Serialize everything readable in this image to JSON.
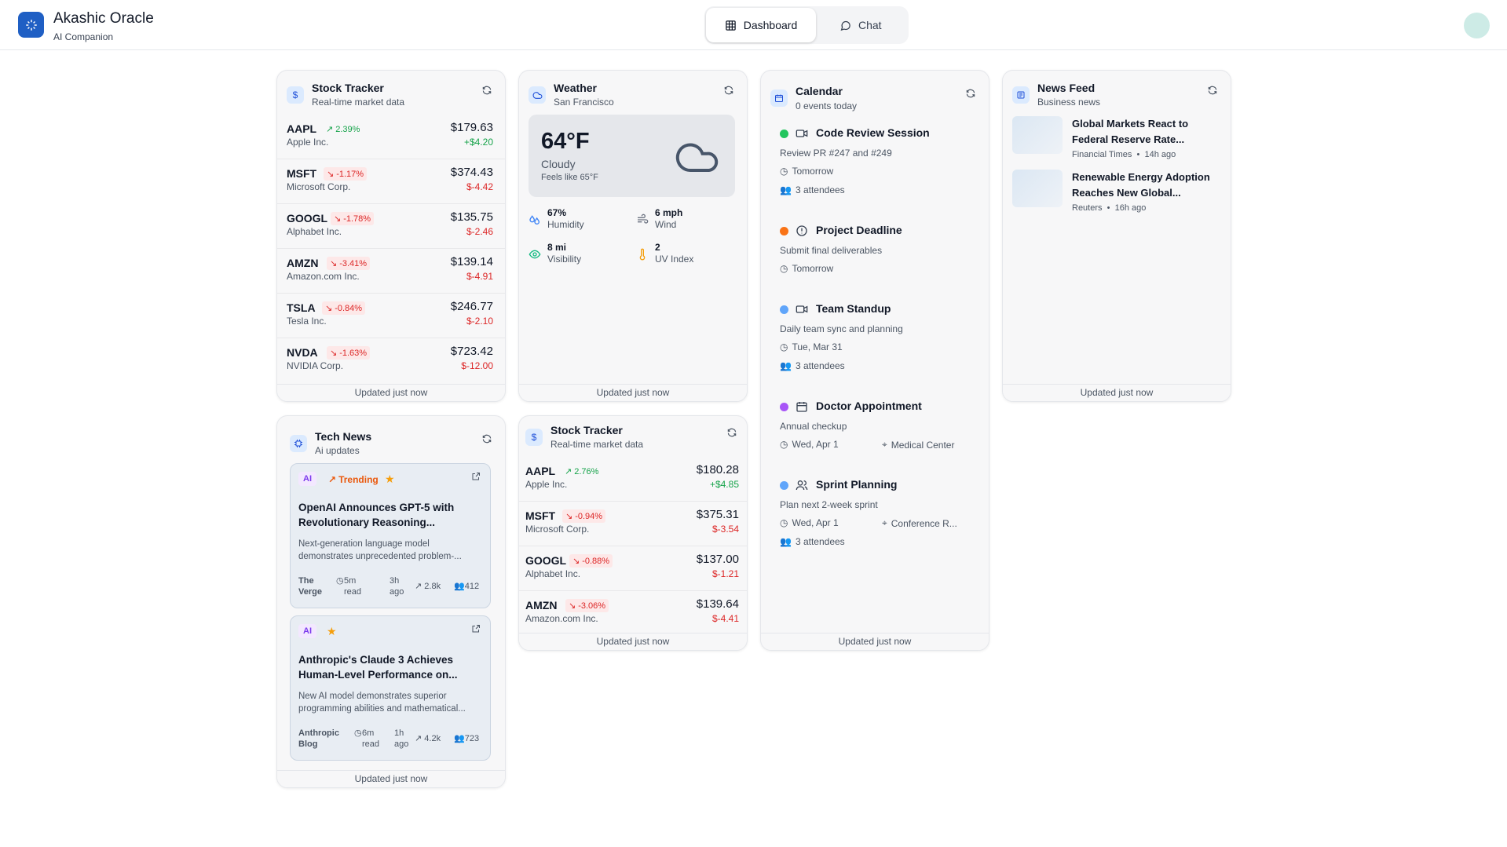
{
  "header": {
    "brand_title": "Akashic Oracle",
    "brand_subtitle": "AI Companion",
    "tabs": [
      {
        "label": "Dashboard",
        "icon": "grid-icon",
        "active": true
      },
      {
        "label": "Chat",
        "icon": "chat-bubble-icon",
        "active": false
      }
    ]
  },
  "stock_tracker_1": {
    "title": "Stock Tracker",
    "subtitle": "Real-time market data",
    "footer": "Updated just now",
    "stocks": [
      {
        "symbol": "AAPL",
        "name": "Apple Inc.",
        "change_pct": "2.39%",
        "price": "$179.63",
        "delta": "+$4.20",
        "direction": "up"
      },
      {
        "symbol": "MSFT",
        "name": "Microsoft Corp.",
        "change_pct": "-1.17%",
        "price": "$374.43",
        "delta": "$-4.42",
        "direction": "down"
      },
      {
        "symbol": "GOOGL",
        "name": "Alphabet Inc.",
        "change_pct": "-1.78%",
        "price": "$135.75",
        "delta": "$-2.46",
        "direction": "down"
      },
      {
        "symbol": "AMZN",
        "name": "Amazon.com Inc.",
        "change_pct": "-3.41%",
        "price": "$139.14",
        "delta": "$-4.91",
        "direction": "down"
      },
      {
        "symbol": "TSLA",
        "name": "Tesla Inc.",
        "change_pct": "-0.84%",
        "price": "$246.77",
        "delta": "$-2.10",
        "direction": "down"
      },
      {
        "symbol": "NVDA",
        "name": "NVIDIA Corp.",
        "change_pct": "-1.63%",
        "price": "$723.42",
        "delta": "$-12.00",
        "direction": "down"
      }
    ]
  },
  "weather": {
    "title": "Weather",
    "subtitle": "San Francisco",
    "temp": "64°F",
    "condition": "Cloudy",
    "feels_like": "Feels like 65°F",
    "humidity_value": "67%",
    "humidity_label": "Humidity",
    "wind_value": "6 mph",
    "wind_label": "Wind",
    "visibility_value": "8 mi",
    "visibility_label": "Visibility",
    "uv_value": "2",
    "uv_label": "UV Index",
    "footer": "Updated just now"
  },
  "calendar": {
    "title": "Calendar",
    "subtitle": "0 events today",
    "footer": "Updated just now",
    "events": [
      {
        "title": "Code Review Session",
        "desc": "Review PR #247 and #249",
        "when": "Tomorrow",
        "attendees": "3 attendees",
        "location": "",
        "dot_color": "#22c55e",
        "icon": "video-icon"
      },
      {
        "title": "Project Deadline",
        "desc": "Submit final deliverables",
        "when": "Tomorrow",
        "attendees": "",
        "location": "",
        "dot_color": "#f97316",
        "icon": "alert-circle-icon"
      },
      {
        "title": "Team Standup",
        "desc": "Daily team sync and planning",
        "when": "Tue, Mar 31",
        "attendees": "3 attendees",
        "location": "",
        "dot_color": "#60a5fa",
        "icon": "video-icon"
      },
      {
        "title": "Doctor Appointment",
        "desc": "Annual checkup",
        "when": "Wed, Apr 1",
        "attendees": "",
        "location": "Medical Center",
        "dot_color": "#a855f7",
        "icon": "calendar-icon"
      },
      {
        "title": "Sprint Planning",
        "desc": "Plan next 2-week sprint",
        "when": "Wed, Apr 1",
        "attendees": "3 attendees",
        "location": "Conference R...",
        "dot_color": "#60a5fa",
        "icon": "users-icon"
      }
    ]
  },
  "news_feed": {
    "title": "News Feed",
    "subtitle": "Business news",
    "footer": "Updated just now",
    "items": [
      {
        "title": "Global Markets React to Federal Reserve Rate...",
        "source": "Financial Times",
        "age": "14h ago"
      },
      {
        "title": "Renewable Energy Adoption Reaches New Global...",
        "source": "Reuters",
        "age": "16h ago"
      }
    ]
  },
  "tech_news": {
    "title": "Tech News",
    "subtitle": "Ai updates",
    "footer": "Updated just now",
    "items": [
      {
        "tag": "AI",
        "trending": "Trending",
        "title": "OpenAI Announces GPT-5 with Revolutionary Reasoning...",
        "desc": "Next-generation language model demonstrates unprecedented problem-...",
        "source_1": "The",
        "source_2": "Verge",
        "read_1": "5m",
        "read_2": "read",
        "age_1": "3h",
        "age_2": "ago",
        "views": "2.8k",
        "users": "412"
      },
      {
        "tag": "AI",
        "trending": "",
        "title": "Anthropic's Claude 3 Achieves Human-Level Performance on...",
        "desc": "New AI model demonstrates superior programming abilities and mathematical...",
        "source_1": "Anthropic",
        "source_2": "Blog",
        "read_1": "6m",
        "read_2": "read",
        "age_1": "1h",
        "age_2": "ago",
        "views": "4.2k",
        "users": "723"
      }
    ]
  },
  "stock_tracker_2": {
    "title": "Stock Tracker",
    "subtitle": "Real-time market data",
    "footer": "Updated just now",
    "stocks": [
      {
        "symbol": "AAPL",
        "name": "Apple Inc.",
        "change_pct": "2.76%",
        "price": "$180.28",
        "delta": "+$4.85",
        "direction": "up"
      },
      {
        "symbol": "MSFT",
        "name": "Microsoft Corp.",
        "change_pct": "-0.94%",
        "price": "$375.31",
        "delta": "$-3.54",
        "direction": "down"
      },
      {
        "symbol": "GOOGL",
        "name": "Alphabet Inc.",
        "change_pct": "-0.88%",
        "price": "$137.00",
        "delta": "$-1.21",
        "direction": "down"
      },
      {
        "symbol": "AMZN",
        "name": "Amazon.com Inc.",
        "change_pct": "-3.06%",
        "price": "$139.64",
        "delta": "$-4.41",
        "direction": "down"
      }
    ]
  }
}
